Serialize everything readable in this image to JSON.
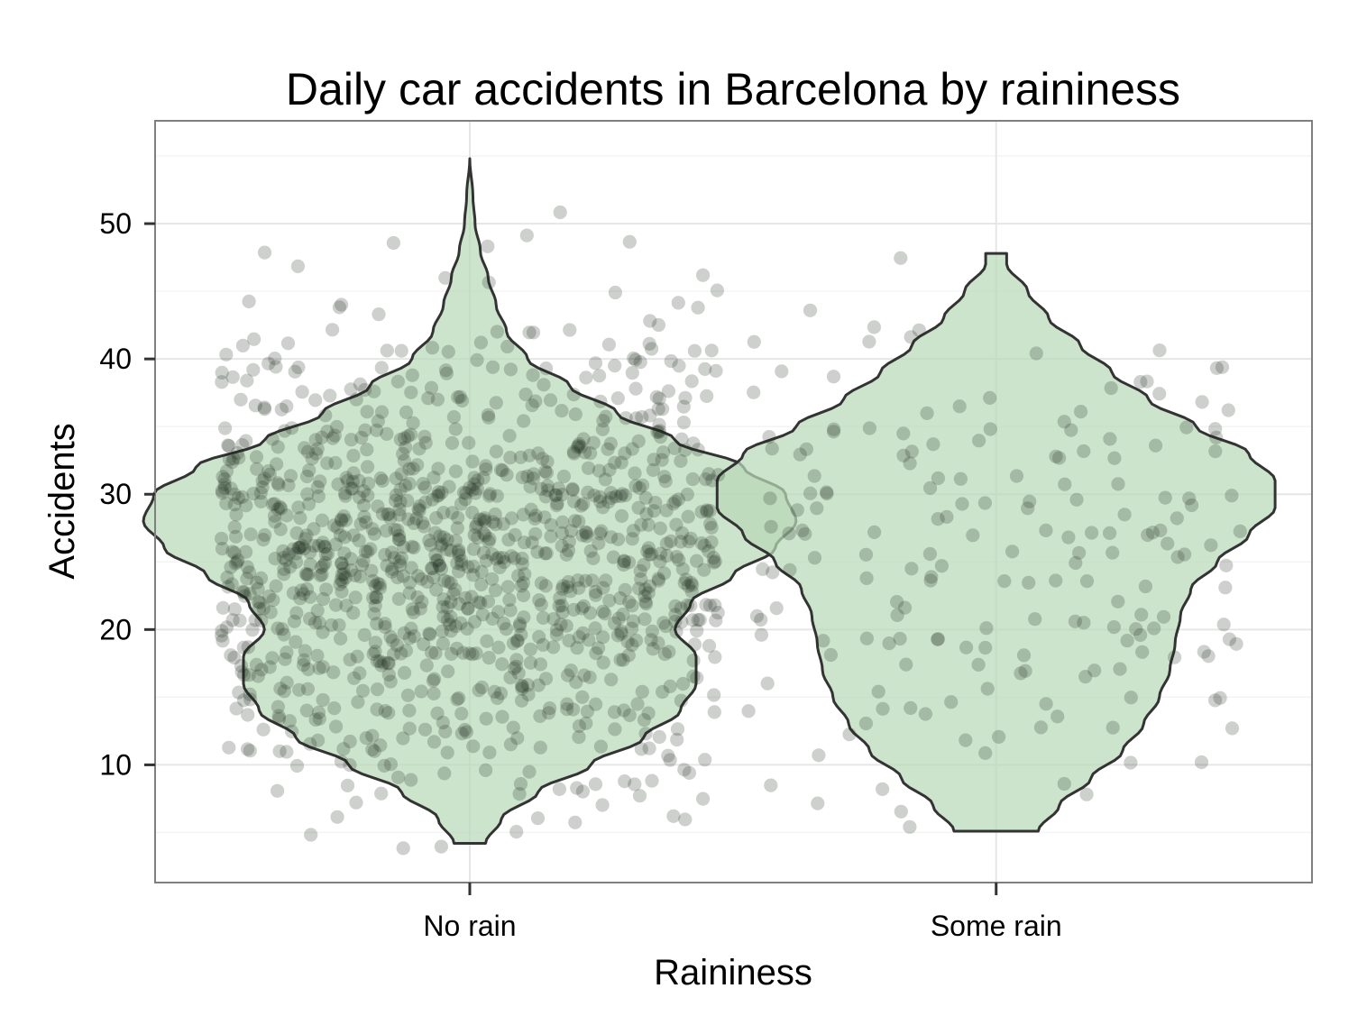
{
  "chart_data": {
    "type": "violin",
    "title": "Daily car accidents in Barcelona by raininess",
    "xlabel": "Raininess",
    "ylabel": "Accidents",
    "categories": [
      "No rain",
      "Some rain"
    ],
    "ylim": [
      1.3,
      57.6
    ],
    "yticks": [
      10,
      20,
      30,
      40,
      50
    ],
    "grid": true,
    "legend": "none",
    "colors": {
      "violin_fill": "#b9d8b8",
      "violin_stroke": "#333333",
      "points": "#1c2b1c",
      "panel_border": "#7f7f7f",
      "grid_major": "#e6e6e6",
      "grid_minor": "#f3f3f3"
    },
    "violins": [
      {
        "category": "No rain",
        "min": 4.2,
        "max": 54.8,
        "profile": [
          [
            4.2,
            0.03
          ],
          [
            6,
            0.06
          ],
          [
            8,
            0.13
          ],
          [
            10,
            0.23
          ],
          [
            12,
            0.33
          ],
          [
            14,
            0.4
          ],
          [
            16,
            0.43
          ],
          [
            18,
            0.43
          ],
          [
            20,
            0.39
          ],
          [
            22,
            0.42
          ],
          [
            24,
            0.5
          ],
          [
            26,
            0.58
          ],
          [
            28,
            0.62
          ],
          [
            30,
            0.6
          ],
          [
            32,
            0.52
          ],
          [
            34,
            0.39
          ],
          [
            36,
            0.28
          ],
          [
            38,
            0.19
          ],
          [
            40,
            0.11
          ],
          [
            42,
            0.07
          ],
          [
            44,
            0.05
          ],
          [
            46,
            0.035
          ],
          [
            48,
            0.02
          ],
          [
            50,
            0.01
          ],
          [
            52,
            0.006
          ],
          [
            54.8,
            0.0
          ]
        ]
      },
      {
        "category": "Some rain",
        "min": 5.1,
        "max": 47.8,
        "profile": [
          [
            5.1,
            0.08
          ],
          [
            7,
            0.12
          ],
          [
            9,
            0.18
          ],
          [
            11,
            0.24
          ],
          [
            13,
            0.28
          ],
          [
            15,
            0.31
          ],
          [
            17,
            0.33
          ],
          [
            19,
            0.34
          ],
          [
            21,
            0.35
          ],
          [
            23,
            0.37
          ],
          [
            25,
            0.42
          ],
          [
            27,
            0.48
          ],
          [
            29,
            0.53
          ],
          [
            31,
            0.53
          ],
          [
            33,
            0.48
          ],
          [
            35,
            0.38
          ],
          [
            37,
            0.29
          ],
          [
            39,
            0.22
          ],
          [
            41,
            0.16
          ],
          [
            43,
            0.1
          ],
          [
            45,
            0.06
          ],
          [
            47,
            0.02
          ],
          [
            47.8,
            0.02
          ]
        ]
      }
    ],
    "points": [
      {
        "category": "No rain",
        "n": 1150,
        "seed": 7,
        "jitter_half_width": 0.4,
        "mean": 25.5,
        "sd": 8.2,
        "low": 3.5,
        "high": 55
      },
      {
        "category": "Some rain",
        "n": 190,
        "seed": 19,
        "jitter_half_width": 0.4,
        "mean": 24.5,
        "sd": 9.6,
        "low": 4.5,
        "high": 48
      }
    ]
  }
}
